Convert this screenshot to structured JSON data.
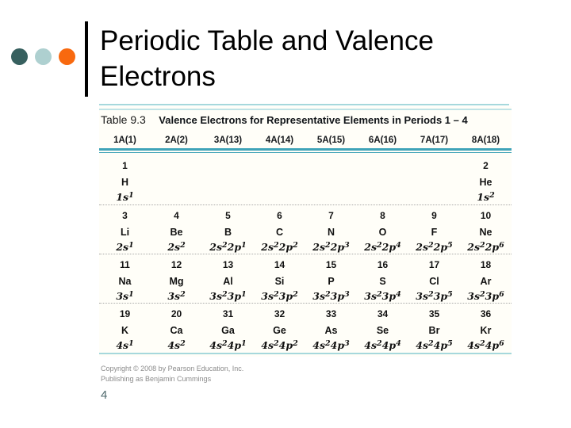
{
  "slide": {
    "title_lines": [
      "Periodic Table and Valence",
      "Electrons"
    ]
  },
  "figure": {
    "caption_label": "Table 9.3",
    "caption_title": "Valence Electrons for Representative Elements in Periods 1 – 4",
    "column_headers": [
      "1A(1)",
      "2A(2)",
      "3A(13)",
      "4A(14)",
      "5A(15)",
      "6A(16)",
      "7A(17)",
      "8A(18)"
    ],
    "periods": [
      {
        "period": "1",
        "cells": [
          {
            "number": "1",
            "symbol": "H",
            "config": "1s¹"
          },
          null,
          null,
          null,
          null,
          null,
          null,
          {
            "number": "2",
            "symbol": "He",
            "config": "1s²"
          }
        ]
      },
      {
        "period": "2",
        "cells": [
          {
            "number": "3",
            "symbol": "Li",
            "config": "2s¹"
          },
          {
            "number": "4",
            "symbol": "Be",
            "config": "2s²"
          },
          {
            "number": "5",
            "symbol": "B",
            "config": "2s²2p¹"
          },
          {
            "number": "6",
            "symbol": "C",
            "config": "2s²2p²"
          },
          {
            "number": "7",
            "symbol": "N",
            "config": "2s²2p³"
          },
          {
            "number": "8",
            "symbol": "O",
            "config": "2s²2p⁴"
          },
          {
            "number": "9",
            "symbol": "F",
            "config": "2s²2p⁵"
          },
          {
            "number": "10",
            "symbol": "Ne",
            "config": "2s²2p⁶"
          }
        ]
      },
      {
        "period": "3",
        "cells": [
          {
            "number": "11",
            "symbol": "Na",
            "config": "3s¹"
          },
          {
            "number": "12",
            "symbol": "Mg",
            "config": "3s²"
          },
          {
            "number": "13",
            "symbol": "Al",
            "config": "3s²3p¹"
          },
          {
            "number": "14",
            "symbol": "Si",
            "config": "3s²3p²"
          },
          {
            "number": "15",
            "symbol": "P",
            "config": "3s²3p³"
          },
          {
            "number": "16",
            "symbol": "S",
            "config": "3s²3p⁴"
          },
          {
            "number": "17",
            "symbol": "Cl",
            "config": "3s²3p⁵"
          },
          {
            "number": "18",
            "symbol": "Ar",
            "config": "3s²3p⁶"
          }
        ]
      },
      {
        "period": "4",
        "cells": [
          {
            "number": "19",
            "symbol": "K",
            "config": "4s¹"
          },
          {
            "number": "20",
            "symbol": "Ca",
            "config": "4s²"
          },
          {
            "number": "31",
            "symbol": "Ga",
            "config": "4s²4p¹"
          },
          {
            "number": "32",
            "symbol": "Ge",
            "config": "4s²4p²"
          },
          {
            "number": "33",
            "symbol": "As",
            "config": "4s²4p³"
          },
          {
            "number": "34",
            "symbol": "Se",
            "config": "4s²4p⁴"
          },
          {
            "number": "35",
            "symbol": "Br",
            "config": "4s²4p⁵"
          },
          {
            "number": "36",
            "symbol": "Kr",
            "config": "4s²4p⁶"
          }
        ]
      }
    ]
  },
  "footer": {
    "copyright_line1": "Copyright © 2008 by Pearson Education, Inc.",
    "copyright_line2": "Publishing as Benjamin Cummings",
    "page_number": "4"
  },
  "colors": {
    "bullet_dark_teal": "#37605f",
    "bullet_light_blue": "#aed0d0",
    "bullet_orange": "#f8690f",
    "header_rule_teal": "#3fa3b8",
    "light_rule_teal": "#a6d8dc",
    "figure_background": "#fffef8"
  }
}
